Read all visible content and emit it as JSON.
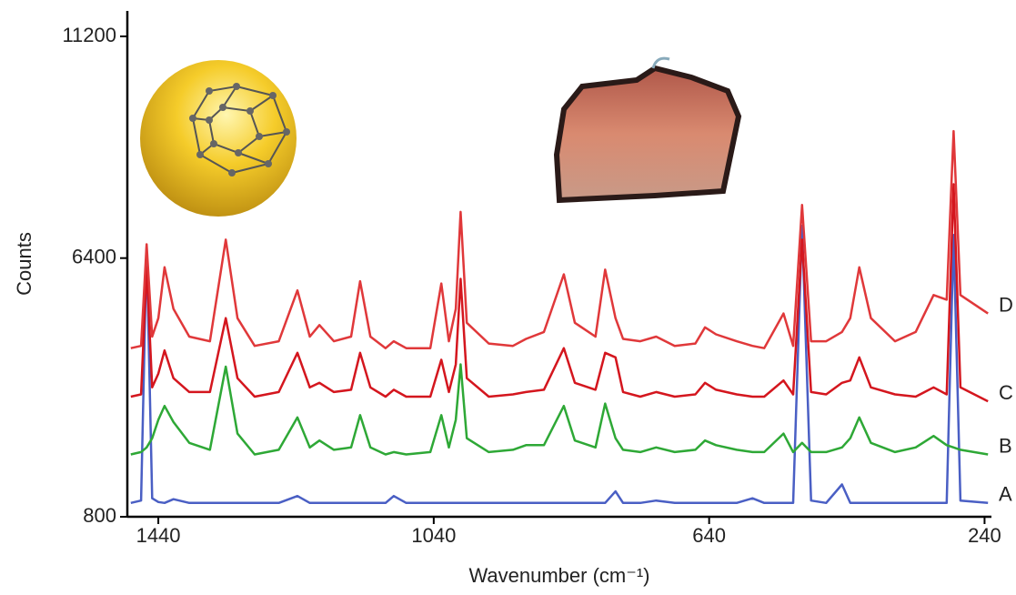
{
  "chart_data": {
    "type": "line",
    "x_label": "Wavenumber (cm⁻¹)",
    "y_label": "Counts",
    "xlim": [
      1485,
      230
    ],
    "ylim": [
      800,
      11200
    ],
    "xticks": [
      1440,
      1040,
      640,
      240
    ],
    "yticks": [
      800,
      6400,
      11200
    ],
    "x": [
      1480,
      1465,
      1457,
      1449,
      1440,
      1431,
      1418,
      1395,
      1365,
      1342,
      1325,
      1300,
      1265,
      1238,
      1220,
      1206,
      1185,
      1160,
      1147,
      1132,
      1110,
      1098,
      1080,
      1045,
      1029,
      1018,
      1008,
      1001,
      992,
      960,
      925,
      906,
      880,
      851,
      835,
      805,
      791,
      776,
      765,
      740,
      717,
      690,
      660,
      646,
      630,
      600,
      577,
      560,
      532,
      518,
      505,
      492,
      470,
      447,
      435,
      422,
      405,
      370,
      340,
      314,
      295,
      285,
      275,
      235
    ],
    "series": [
      {
        "name": "A",
        "color": "#4a5fc4",
        "values": [
          1100,
          1150,
          6650,
          1200,
          1120,
          1100,
          1180,
          1100,
          1100,
          1100,
          1100,
          1100,
          1100,
          1250,
          1100,
          1100,
          1100,
          1100,
          1100,
          1100,
          1100,
          1250,
          1100,
          1100,
          1100,
          1100,
          1100,
          1100,
          1100,
          1100,
          1100,
          1100,
          1100,
          1100,
          1100,
          1100,
          1100,
          1350,
          1100,
          1100,
          1150,
          1100,
          1100,
          1100,
          1100,
          1100,
          1200,
          1100,
          1100,
          1100,
          7100,
          1150,
          1100,
          1500,
          1100,
          1100,
          1100,
          1100,
          1100,
          1100,
          1100,
          6900,
          1150,
          1100
        ]
      },
      {
        "name": "B",
        "color": "#2ea836",
        "values": [
          2150,
          2200,
          2300,
          2500,
          2900,
          3200,
          2850,
          2400,
          2250,
          4050,
          2600,
          2150,
          2250,
          2950,
          2300,
          2450,
          2250,
          2300,
          3000,
          2300,
          2150,
          2200,
          2150,
          2200,
          3000,
          2300,
          2900,
          4100,
          2500,
          2200,
          2250,
          2350,
          2350,
          3200,
          2450,
          2300,
          3250,
          2500,
          2250,
          2200,
          2300,
          2200,
          2250,
          2450,
          2350,
          2250,
          2200,
          2200,
          2600,
          2200,
          2400,
          2200,
          2200,
          2300,
          2500,
          2950,
          2400,
          2200,
          2300,
          2550,
          2350,
          2300,
          2250,
          2150
        ]
      },
      {
        "name": "C",
        "color": "#d4161e",
        "values": [
          3400,
          3450,
          6200,
          3600,
          3900,
          4400,
          3800,
          3500,
          3500,
          5100,
          3800,
          3400,
          3500,
          4350,
          3600,
          3700,
          3500,
          3550,
          4350,
          3600,
          3400,
          3550,
          3400,
          3400,
          4200,
          3500,
          4100,
          5950,
          3800,
          3400,
          3450,
          3500,
          3550,
          4450,
          3700,
          3550,
          4350,
          4250,
          3500,
          3400,
          3500,
          3400,
          3450,
          3700,
          3550,
          3450,
          3400,
          3400,
          3750,
          3450,
          6800,
          3500,
          3450,
          3700,
          3750,
          4250,
          3600,
          3450,
          3400,
          3600,
          3450,
          8000,
          3600,
          3300
        ]
      },
      {
        "name": "D",
        "color": "#e0383a",
        "values": [
          4450,
          4500,
          6700,
          4700,
          5100,
          6200,
          5300,
          4700,
          4600,
          6800,
          5100,
          4500,
          4600,
          5700,
          4700,
          4950,
          4600,
          4700,
          5900,
          4700,
          4450,
          4600,
          4450,
          4450,
          5850,
          4600,
          5300,
          7400,
          5000,
          4550,
          4500,
          4650,
          4800,
          6050,
          5000,
          4700,
          6150,
          5100,
          4650,
          4600,
          4700,
          4500,
          4550,
          4900,
          4750,
          4600,
          4500,
          4450,
          5200,
          4500,
          7550,
          4600,
          4600,
          4800,
          5100,
          6200,
          5100,
          4600,
          4800,
          5600,
          5500,
          9150,
          5600,
          5200
        ]
      }
    ]
  }
}
